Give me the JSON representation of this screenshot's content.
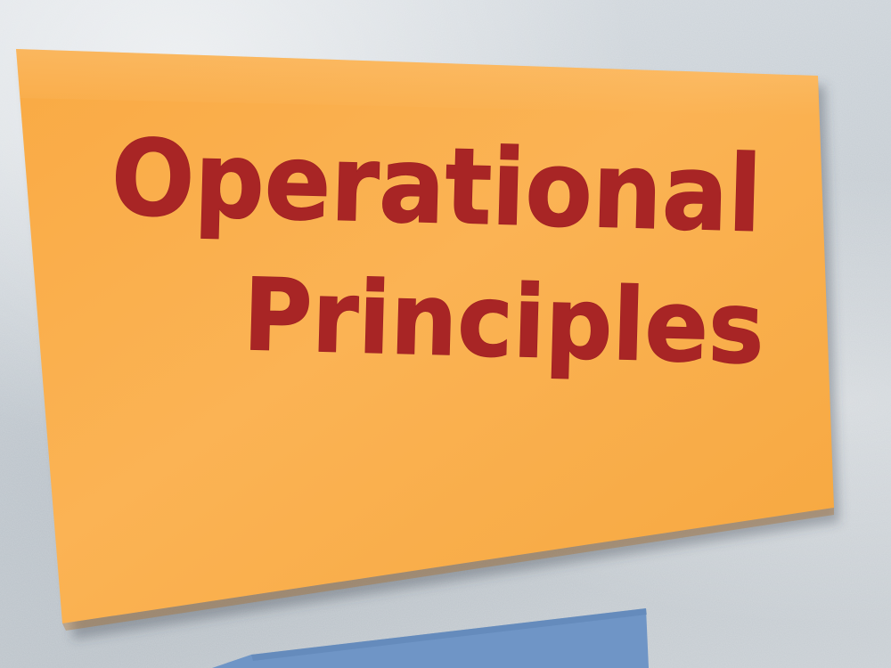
{
  "sticky_note": {
    "line1": "Operational",
    "line2": "Principles"
  },
  "colors": {
    "wall": "#cfd5da",
    "note": "#f9ae4a",
    "ink": "#a82525",
    "blue_card": "#6f95c6"
  }
}
